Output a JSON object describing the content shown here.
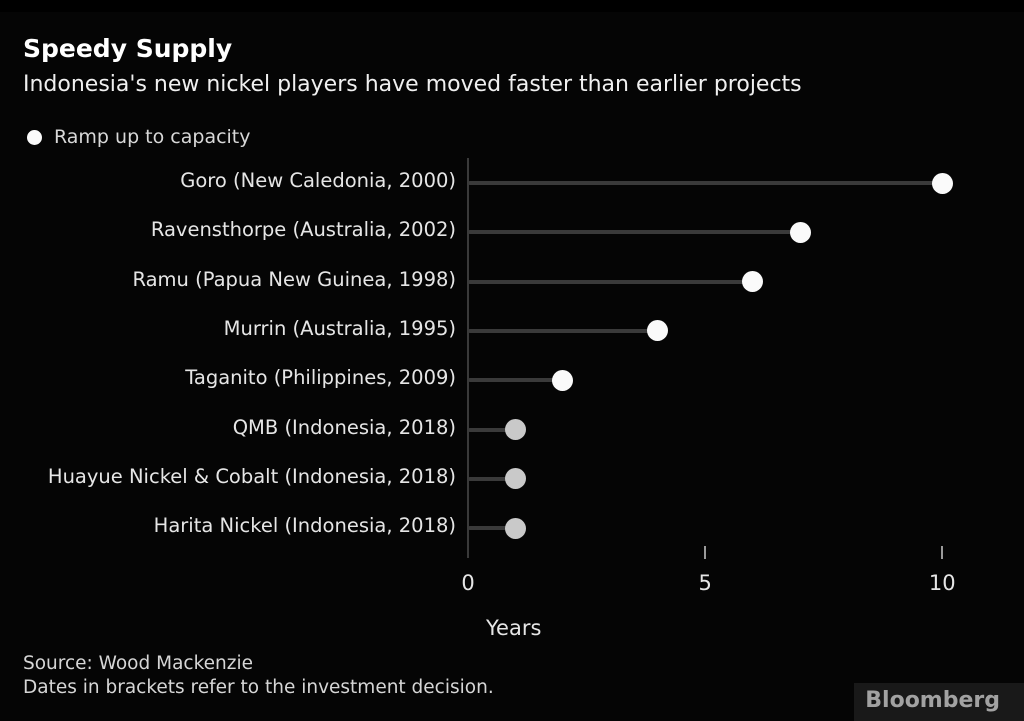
{
  "chart_data": {
    "type": "scatter",
    "style": "lollipop",
    "title": "Speedy Supply",
    "subtitle": "Indonesia's new nickel players have moved faster than earlier projects",
    "series_name": "Ramp up to capacity",
    "points": [
      {
        "category": "Goro (New Caledonia, 2000)",
        "value": 10,
        "dot_color": "#fafafa"
      },
      {
        "category": "Ravensthorpe (Australia, 2002)",
        "value": 7,
        "dot_color": "#fafafa"
      },
      {
        "category": "Ramu (Papua New Guinea, 1998)",
        "value": 6,
        "dot_color": "#fafafa"
      },
      {
        "category": "Murrin (Australia, 1995)",
        "value": 4,
        "dot_color": "#fafafa"
      },
      {
        "category": "Taganito (Philippines, 2009)",
        "value": 2,
        "dot_color": "#fafafa"
      },
      {
        "category": "QMB (Indonesia, 2018)",
        "value": 1,
        "dot_color": "#c9c9c9"
      },
      {
        "category": "Huayue Nickel & Cobalt (Indonesia, 2018)",
        "value": 1,
        "dot_color": "#c9c9c9"
      },
      {
        "category": "Harita Nickel (Indonesia, 2018)",
        "value": 1,
        "dot_color": "#c9c9c9"
      }
    ],
    "xlabel": "Years",
    "xlim": [
      0,
      11.7
    ],
    "x_ticks": [
      {
        "value": 0,
        "label": "0"
      },
      {
        "value": 5,
        "label": "5"
      },
      {
        "value": 10,
        "label": "10"
      }
    ],
    "grid": false,
    "legend_position": "top-left",
    "unit": "years"
  },
  "footer": {
    "source": "Source: Wood Mackenzie",
    "note": "Dates in brackets refer to the investment decision."
  },
  "brand": {
    "logo_text": "Bloomberg"
  },
  "colors": {
    "background": "#050505",
    "dot_default": "#fafafa",
    "dot_muted": "#c9c9c9",
    "stem": "#3a3a3a",
    "axis": "#3a3a3a",
    "tick": "#9a9a9a",
    "title_text": "#ffffff",
    "label_text": "#e6e6e6",
    "logo_bg": "#191919",
    "logo_text": "#a2a2a2"
  }
}
